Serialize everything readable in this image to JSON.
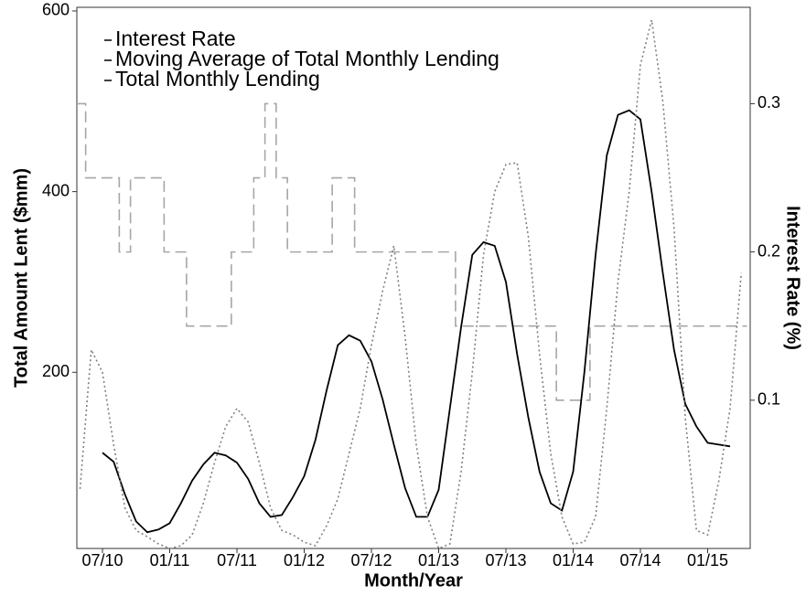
{
  "chart_data": {
    "type": "line",
    "x_label": "Month/Year",
    "y_label": "Total Amount Lent ($mm)",
    "y2_label": "Interest Rate (%)",
    "x": [
      "05/10",
      "06/10",
      "07/10",
      "08/10",
      "09/10",
      "10/10",
      "11/10",
      "12/10",
      "01/11",
      "02/11",
      "03/11",
      "04/11",
      "05/11",
      "06/11",
      "07/11",
      "08/11",
      "09/11",
      "10/11",
      "11/11",
      "12/11",
      "01/12",
      "02/12",
      "03/12",
      "04/12",
      "05/12",
      "06/12",
      "07/12",
      "08/12",
      "09/12",
      "10/12",
      "11/12",
      "12/12",
      "01/13",
      "02/13",
      "03/13",
      "04/13",
      "05/13",
      "06/13",
      "07/13",
      "08/13",
      "09/13",
      "10/13",
      "11/13",
      "12/13",
      "01/14",
      "02/14",
      "03/14",
      "04/14",
      "05/14",
      "06/14",
      "07/14",
      "08/14",
      "09/14",
      "10/14",
      "11/14",
      "12/14",
      "01/15",
      "02/15",
      "03/15",
      "04/15"
    ],
    "xticks": [
      "07/10",
      "01/11",
      "07/11",
      "01/12",
      "07/12",
      "01/13",
      "07/13",
      "01/14",
      "07/14",
      "01/15"
    ],
    "ylim": [
      5,
      604
    ],
    "yticks": [
      200,
      400,
      600
    ],
    "y2lim": [
      0,
      0.365
    ],
    "y2ticks": [
      0.1,
      0.2,
      0.3
    ],
    "legend": "top-left",
    "series": [
      {
        "name": "Interest Rate",
        "color": "#a6a6a6",
        "dash": "dashed",
        "step": true,
        "axis": "y2",
        "values": [
          0.3,
          0.25,
          0.25,
          0.25,
          0.2,
          0.25,
          0.25,
          0.25,
          0.2,
          0.2,
          0.15,
          0.15,
          0.15,
          0.15,
          0.2,
          0.2,
          0.25,
          0.3,
          0.25,
          0.2,
          0.2,
          0.2,
          0.2,
          0.25,
          0.25,
          0.2,
          0.2,
          0.2,
          0.2,
          0.2,
          0.2,
          0.2,
          0.2,
          0.2,
          0.15,
          0.15,
          0.15,
          0.15,
          0.15,
          0.15,
          0.15,
          0.15,
          0.15,
          0.1,
          0.1,
          0.1,
          0.15,
          0.15,
          0.15,
          0.15,
          0.15,
          0.15,
          0.15,
          0.15,
          0.15,
          0.15,
          0.15,
          0.15,
          0.15,
          0.15
        ]
      },
      {
        "name": "Moving Average of Total Monthly Lending",
        "color": "#000000",
        "dash": "solid",
        "values": [
          null,
          null,
          111,
          101,
          65,
          35,
          23,
          26,
          33,
          55,
          80,
          98,
          111,
          108,
          100,
          82,
          55,
          40,
          42,
          62,
          85,
          125,
          180,
          230,
          241,
          235,
          212,
          170,
          120,
          72,
          40,
          40,
          70,
          160,
          250,
          330,
          344,
          340,
          300,
          220,
          150,
          90,
          55,
          47,
          90,
          200,
          330,
          440,
          485,
          490,
          480,
          400,
          310,
          225,
          165,
          140,
          122,
          120,
          118,
          null
        ]
      },
      {
        "name": "Total Monthly Lending",
        "color": "#808080",
        "dash": "dotted",
        "values": [
          71,
          225,
          200,
          120,
          50,
          25,
          18,
          10,
          5,
          8,
          20,
          55,
          100,
          140,
          160,
          145,
          100,
          50,
          25,
          20,
          12,
          8,
          30,
          60,
          110,
          160,
          230,
          290,
          340,
          240,
          120,
          40,
          5,
          10,
          90,
          200,
          330,
          400,
          430,
          432,
          350,
          220,
          110,
          40,
          10,
          12,
          40,
          160,
          300,
          400,
          540,
          590,
          500,
          360,
          150,
          25,
          20,
          80,
          160,
          310
        ]
      }
    ]
  }
}
